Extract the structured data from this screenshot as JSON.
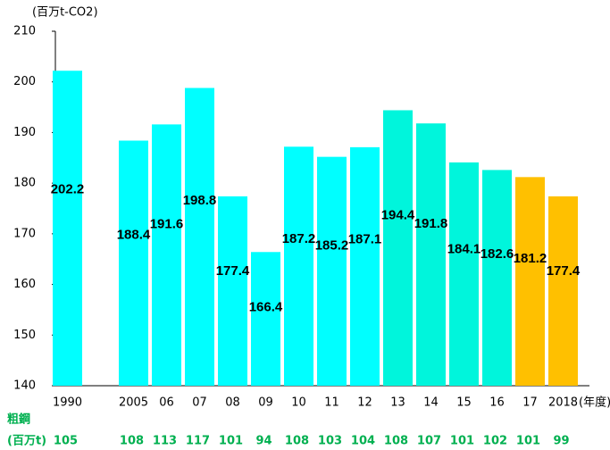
{
  "chart_data": {
    "type": "bar",
    "y_label": "(百万t-CO2)",
    "x_label": "(年度)",
    "categories": [
      "1990",
      null,
      "2005",
      "06",
      "07",
      "08",
      "09",
      "10",
      "11",
      "12",
      "13",
      "14",
      "15",
      "16",
      "17",
      "2018"
    ],
    "values": [
      202.2,
      null,
      188.4,
      191.6,
      198.8,
      177.4,
      166.4,
      187.2,
      185.2,
      187.1,
      194.4,
      191.8,
      184.1,
      182.6,
      181.2,
      177.4
    ],
    "colors": [
      "#00ffff",
      null,
      "#00ffff",
      "#00ffff",
      "#00ffff",
      "#00ffff",
      "#00ffff",
      "#00ffff",
      "#00ffff",
      "#00ffff",
      "#00f5dc",
      "#00f5dc",
      "#00f5dc",
      "#00f5dc",
      "#ffc000",
      "#ffc000"
    ],
    "ylim": [
      140,
      210
    ],
    "yticks": [
      140,
      150,
      160,
      170,
      180,
      190,
      200,
      210
    ],
    "steel": {
      "title": "粗鋼",
      "unit": "(百万t)",
      "values": [
        105,
        null,
        108,
        113,
        117,
        101,
        94,
        108,
        103,
        104,
        108,
        107,
        101,
        102,
        101,
        99
      ]
    }
  }
}
